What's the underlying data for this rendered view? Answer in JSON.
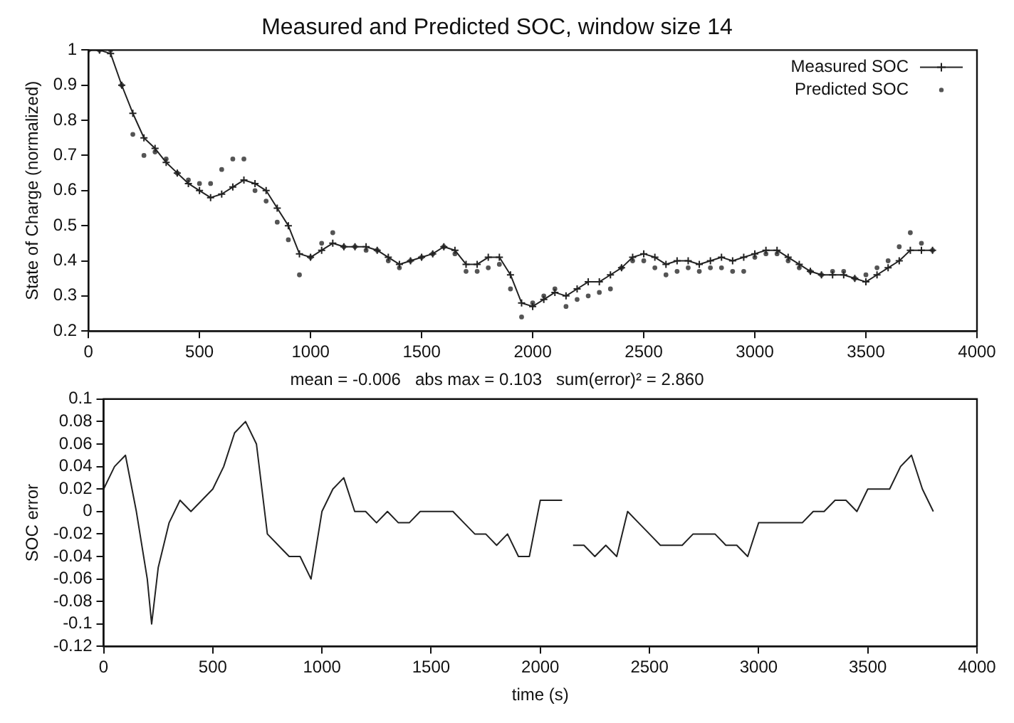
{
  "chart_data": [
    {
      "type": "line",
      "title": "Measured and Predicted SOC, window size 14",
      "ylabel": "State of Charge (normalized)",
      "xlim": [
        0,
        4000
      ],
      "xticks": [
        0,
        500,
        1000,
        1500,
        2000,
        2500,
        3000,
        3500,
        4000
      ],
      "ylim": [
        0.2,
        1
      ],
      "yticks": [
        0.2,
        0.3,
        0.4,
        0.5,
        0.6,
        0.7,
        0.8,
        0.9,
        1
      ],
      "grid": false,
      "legend": "top right",
      "x": [
        0,
        50,
        100,
        150,
        200,
        250,
        300,
        350,
        400,
        450,
        500,
        550,
        600,
        650,
        700,
        750,
        800,
        850,
        900,
        950,
        1000,
        1050,
        1100,
        1150,
        1200,
        1250,
        1300,
        1350,
        1400,
        1450,
        1500,
        1550,
        1600,
        1650,
        1700,
        1750,
        1800,
        1850,
        1900,
        1950,
        2000,
        2050,
        2100,
        2150,
        2200,
        2250,
        2300,
        2350,
        2400,
        2450,
        2500,
        2550,
        2600,
        2650,
        2700,
        2750,
        2800,
        2850,
        2900,
        2950,
        3000,
        3050,
        3100,
        3150,
        3200,
        3250,
        3300,
        3350,
        3400,
        3450,
        3500,
        3550,
        3600,
        3650,
        3700,
        3750,
        3800
      ],
      "series": [
        {
          "name": "Measured SOC",
          "marker": "cross",
          "color": "#222222",
          "values": [
            1.0,
            1.0,
            0.99,
            0.9,
            0.82,
            0.75,
            0.72,
            0.68,
            0.65,
            0.62,
            0.6,
            0.58,
            0.59,
            0.61,
            0.63,
            0.62,
            0.6,
            0.55,
            0.5,
            0.42,
            0.41,
            0.43,
            0.45,
            0.44,
            0.44,
            0.44,
            0.43,
            0.41,
            0.39,
            0.4,
            0.41,
            0.42,
            0.44,
            0.43,
            0.39,
            0.39,
            0.41,
            0.41,
            0.36,
            0.28,
            0.27,
            0.29,
            0.31,
            0.3,
            0.32,
            0.34,
            0.34,
            0.36,
            0.38,
            0.41,
            0.42,
            0.41,
            0.39,
            0.4,
            0.4,
            0.39,
            0.4,
            0.41,
            0.4,
            0.41,
            0.42,
            0.43,
            0.43,
            0.41,
            0.39,
            0.37,
            0.36,
            0.36,
            0.36,
            0.35,
            0.34,
            0.36,
            0.38,
            0.4,
            0.43,
            0.43,
            0.43
          ]
        },
        {
          "name": "Predicted SOC",
          "type": "scatter",
          "marker": "circle",
          "color": "#555555",
          "values": [
            1.0,
            1.0,
            1.0,
            0.9,
            0.76,
            0.7,
            0.71,
            0.69,
            0.65,
            0.63,
            0.62,
            0.62,
            0.66,
            0.69,
            0.69,
            0.6,
            0.57,
            0.51,
            0.46,
            0.36,
            0.41,
            0.45,
            0.48,
            0.44,
            0.44,
            0.43,
            0.43,
            0.4,
            0.38,
            0.4,
            0.41,
            0.42,
            0.44,
            0.42,
            0.37,
            0.37,
            0.38,
            0.39,
            0.32,
            0.24,
            0.28,
            0.3,
            0.32,
            0.27,
            0.29,
            0.3,
            0.31,
            0.32,
            0.38,
            0.4,
            0.4,
            0.38,
            0.36,
            0.37,
            0.38,
            0.37,
            0.38,
            0.38,
            0.37,
            0.37,
            0.41,
            0.42,
            0.42,
            0.4,
            0.38,
            0.37,
            0.36,
            0.37,
            0.37,
            0.35,
            0.36,
            0.38,
            0.4,
            0.44,
            0.48,
            0.45,
            0.43
          ]
        }
      ]
    },
    {
      "type": "line",
      "title": "mean = -0.006   abs max = 0.103   sum(error)² = 2.860",
      "xlabel": "time (s)",
      "ylabel": "SOC error",
      "xlim": [
        0,
        4000
      ],
      "xticks": [
        0,
        500,
        1000,
        1500,
        2000,
        2500,
        3000,
        3500,
        4000
      ],
      "ylim": [
        -0.12,
        0.1
      ],
      "yticks": [
        -0.12,
        -0.1,
        -0.08,
        -0.06,
        -0.04,
        -0.02,
        0,
        0.02,
        0.04,
        0.06,
        0.08,
        0.1
      ],
      "grid": false,
      "x": [
        0,
        50,
        100,
        150,
        200,
        220,
        250,
        300,
        350,
        400,
        450,
        500,
        550,
        600,
        650,
        700,
        750,
        800,
        850,
        900,
        950,
        1000,
        1050,
        1100,
        1150,
        1200,
        1250,
        1300,
        1350,
        1400,
        1450,
        1500,
        1550,
        1600,
        1650,
        1700,
        1750,
        1800,
        1850,
        1900,
        1950,
        2000,
        2050,
        2100,
        2120,
        2150,
        2200,
        2250,
        2300,
        2350,
        2400,
        2450,
        2500,
        2550,
        2600,
        2650,
        2700,
        2750,
        2800,
        2850,
        2900,
        2950,
        3000,
        3050,
        3100,
        3150,
        3200,
        3250,
        3300,
        3350,
        3400,
        3450,
        3500,
        3550,
        3600,
        3650,
        3700,
        3750,
        3800
      ],
      "series": [
        {
          "marker": "none",
          "color": "#222222",
          "values": [
            0.02,
            0.04,
            0.05,
            0.0,
            -0.06,
            -0.1,
            -0.05,
            -0.01,
            0.01,
            0.0,
            0.01,
            0.02,
            0.04,
            0.07,
            0.08,
            0.06,
            -0.02,
            -0.03,
            -0.04,
            -0.04,
            -0.06,
            0.0,
            0.02,
            0.03,
            0.0,
            0.0,
            -0.01,
            0.0,
            -0.01,
            -0.01,
            0.0,
            0.0,
            0.0,
            0.0,
            -0.01,
            -0.02,
            -0.02,
            -0.03,
            -0.02,
            -0.04,
            -0.04,
            0.01,
            0.01,
            0.01,
            null,
            -0.03,
            -0.03,
            -0.04,
            -0.03,
            -0.04,
            0.0,
            -0.01,
            -0.02,
            -0.03,
            -0.03,
            -0.03,
            -0.02,
            -0.02,
            -0.02,
            -0.03,
            -0.03,
            -0.04,
            -0.01,
            -0.01,
            -0.01,
            -0.01,
            -0.01,
            0.0,
            0.0,
            0.01,
            0.01,
            0.0,
            0.02,
            0.02,
            0.02,
            0.04,
            0.05,
            0.02,
            0.0
          ]
        }
      ]
    }
  ]
}
